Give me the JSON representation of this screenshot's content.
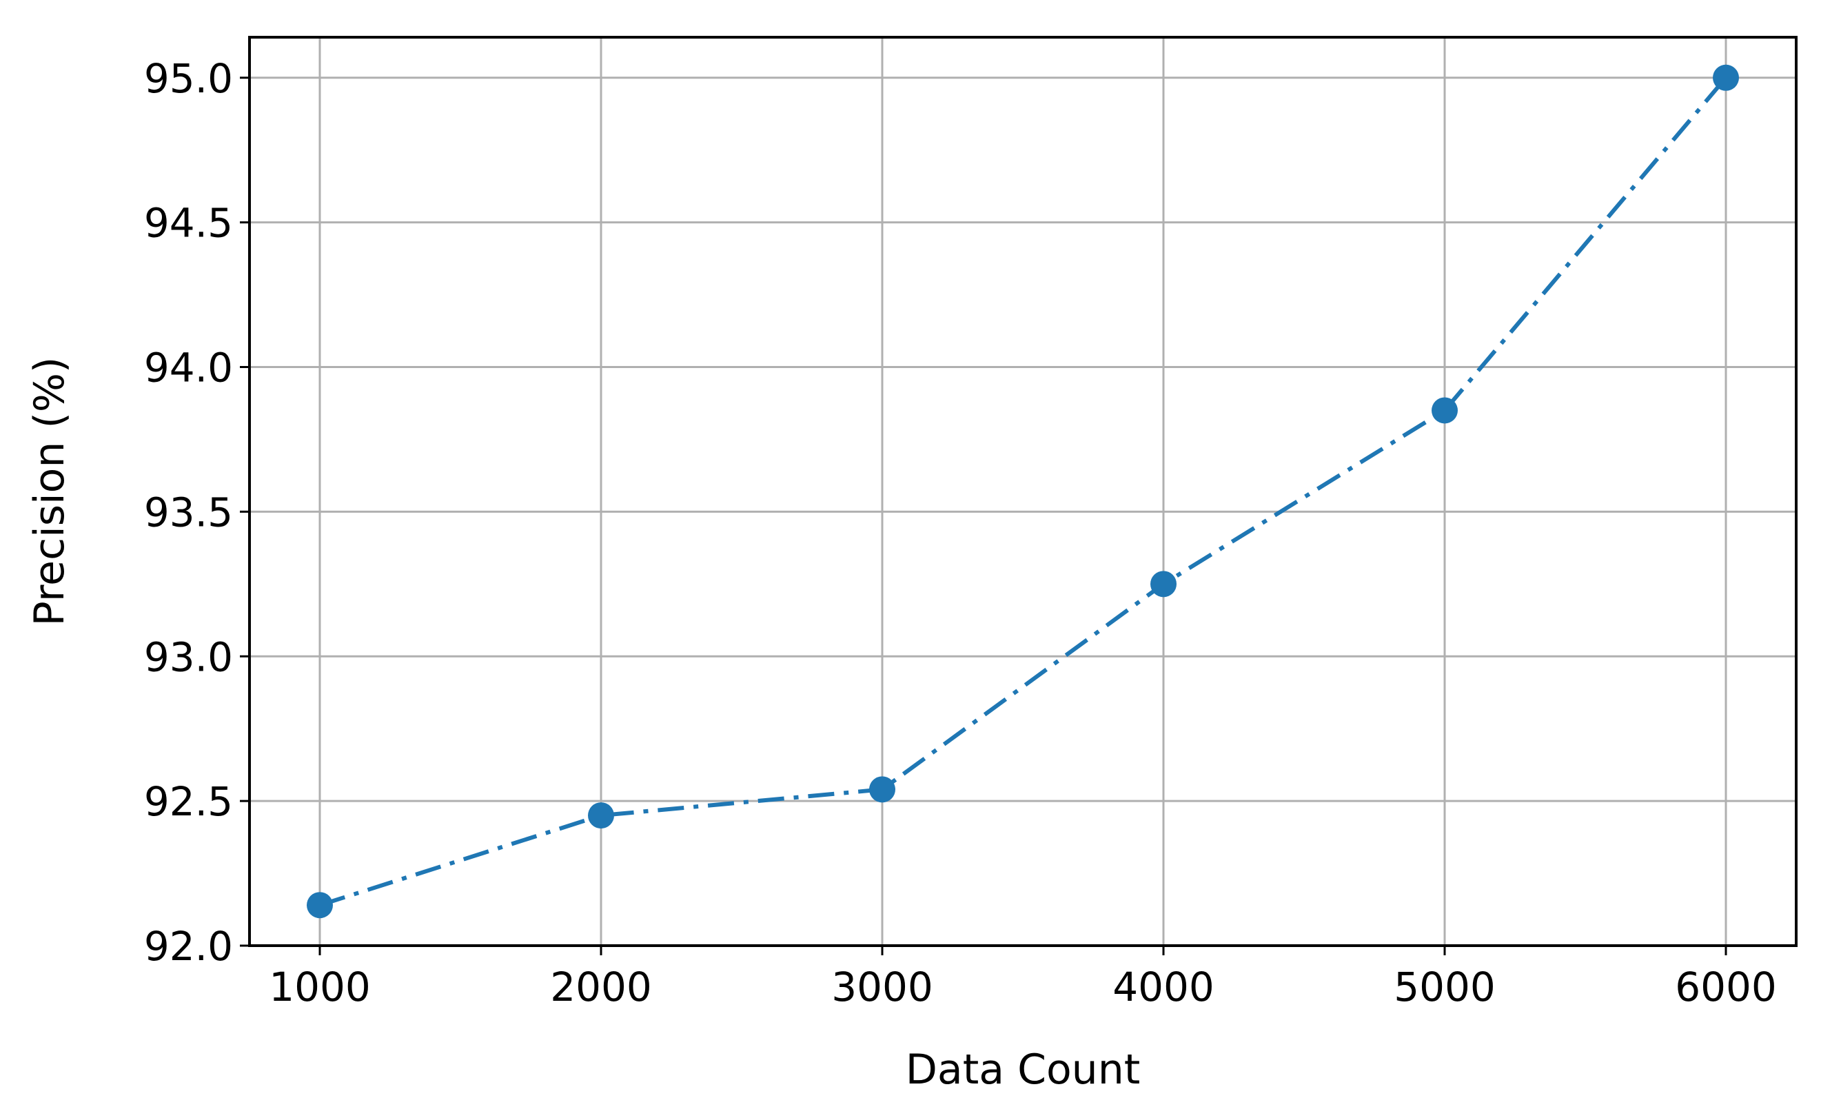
{
  "chart_data": {
    "type": "line",
    "title": "",
    "xlabel": "Data Count",
    "ylabel": "Precision (%)",
    "x": [
      1000,
      2000,
      3000,
      4000,
      5000,
      6000
    ],
    "series": [
      {
        "values": [
          92.14,
          92.45,
          92.54,
          93.25,
          93.85,
          95.0
        ]
      }
    ],
    "xlim": [
      750,
      6250
    ],
    "ylim": [
      92.0,
      95.14
    ],
    "xticks": [
      1000,
      2000,
      3000,
      4000,
      5000,
      6000
    ],
    "xtick_labels": [
      "1000",
      "2000",
      "3000",
      "4000",
      "5000",
      "6000"
    ],
    "yticks": [
      92.0,
      92.5,
      93.0,
      93.5,
      94.0,
      94.5,
      95.0
    ],
    "ytick_labels": [
      "92.0",
      "92.5",
      "93.0",
      "93.5",
      "94.0",
      "94.5",
      "95.0"
    ],
    "grid": true,
    "line_style": "dash-dot",
    "marker": "circle",
    "colors": {
      "series": "#1f77b4",
      "grid": "#b0b0b0",
      "axes": "#000000"
    }
  }
}
